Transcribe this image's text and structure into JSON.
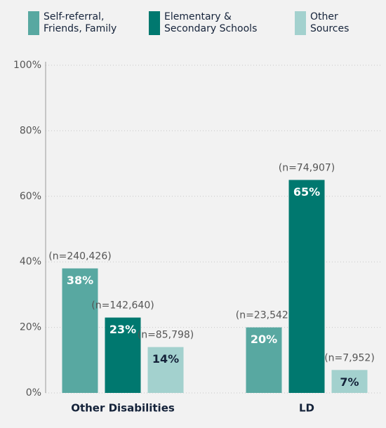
{
  "chart_data": {
    "type": "bar",
    "categories": [
      "Other Disabilities",
      "LD"
    ],
    "series": [
      {
        "name": "Self-referral,\nFriends, Family",
        "color": "#58a8a1",
        "label_color": "#ffffff",
        "values": [
          38,
          20
        ],
        "value_labels": [
          "38%",
          "20%"
        ],
        "annotations": [
          "(n=240,426)",
          "(n=23,542)"
        ]
      },
      {
        "name": "Elementary &\nSecondary Schools",
        "color": "#00786f",
        "label_color": "#ffffff",
        "values": [
          23,
          65
        ],
        "value_labels": [
          "23%",
          "65%"
        ],
        "annotations": [
          "(n=142,640)",
          "(n=74,907)"
        ]
      },
      {
        "name": "Other\nSources",
        "color": "#a3d1ce",
        "label_color": "#15233a",
        "values": [
          14,
          7
        ],
        "value_labels": [
          "14%",
          "7%"
        ],
        "annotations": [
          "(n=85,798)",
          "(n=7,952)"
        ]
      }
    ],
    "ylim": [
      0,
      100
    ],
    "yticks": [
      {
        "value": 0,
        "label": "0%"
      },
      {
        "value": 20,
        "label": "20%"
      },
      {
        "value": 40,
        "label": "40%"
      },
      {
        "value": 60,
        "label": "60%"
      },
      {
        "value": 80,
        "label": "80%"
      },
      {
        "value": 100,
        "label": "100%"
      }
    ],
    "grid": true
  }
}
